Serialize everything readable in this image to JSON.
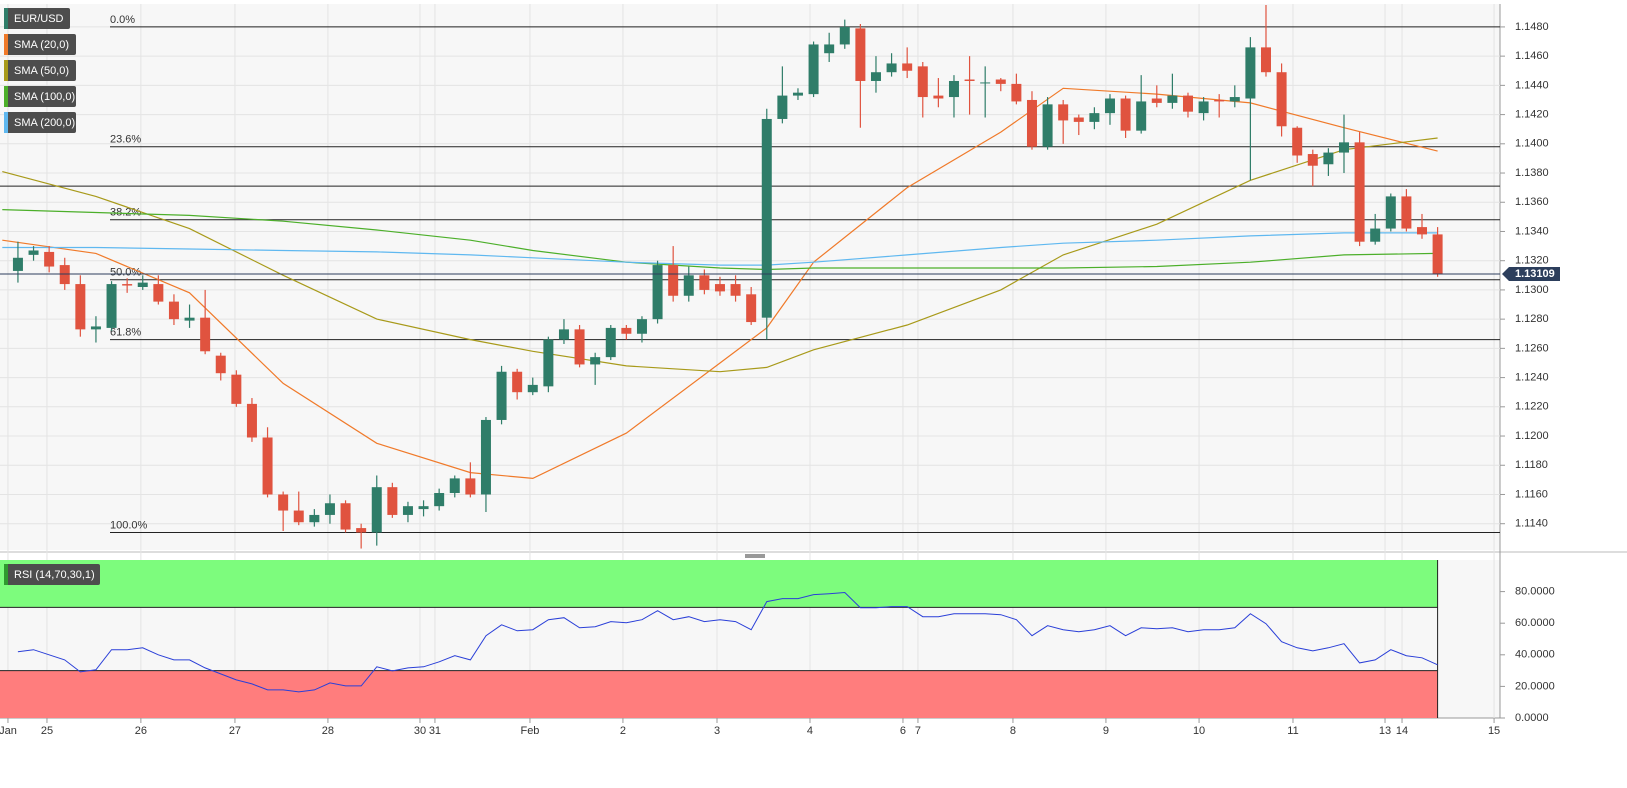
{
  "chart_data": [
    {
      "type": "candlestick",
      "title": "EUR/USD",
      "up_color": "#2f7d69",
      "down_color": "#e0533f",
      "xlim": [
        -1.15,
        95
      ],
      "ylim": [
        1.1122,
        1.1495
      ],
      "xticks": [
        {
          "value": -0.64,
          "label": "Jan"
        },
        {
          "value": 1.86,
          "label": "25"
        },
        {
          "value": 7.88,
          "label": "26"
        },
        {
          "value": 13.91,
          "label": "27"
        },
        {
          "value": 19.87,
          "label": "28"
        },
        {
          "value": 25.77,
          "label": "30"
        },
        {
          "value": 26.73,
          "label": "31"
        },
        {
          "value": 32.82,
          "label": "Feb"
        },
        {
          "value": 38.78,
          "label": "2"
        },
        {
          "value": 44.81,
          "label": "3"
        },
        {
          "value": 50.77,
          "label": "4"
        },
        {
          "value": 56.73,
          "label": "6"
        },
        {
          "value": 57.69,
          "label": "7"
        },
        {
          "value": 63.78,
          "label": "8"
        },
        {
          "value": 69.74,
          "label": "9"
        },
        {
          "value": 75.71,
          "label": "10"
        },
        {
          "value": 81.73,
          "label": "11"
        },
        {
          "value": 87.63,
          "label": "13"
        },
        {
          "value": 88.72,
          "label": "14"
        },
        {
          "value": 94.62,
          "label": "15"
        }
      ],
      "yticks": [
        {
          "value": 1.114,
          "label": "1.1140"
        },
        {
          "value": 1.116,
          "label": "1.1160"
        },
        {
          "value": 1.118,
          "label": "1.1180"
        },
        {
          "value": 1.12,
          "label": "1.1200"
        },
        {
          "value": 1.122,
          "label": "1.1220"
        },
        {
          "value": 1.124,
          "label": "1.1240"
        },
        {
          "value": 1.126,
          "label": "1.1260"
        },
        {
          "value": 1.128,
          "label": "1.1280"
        },
        {
          "value": 1.13,
          "label": "1.1300"
        },
        {
          "value": 1.132,
          "label": "1.1320"
        },
        {
          "value": 1.134,
          "label": "1.1340"
        },
        {
          "value": 1.136,
          "label": "1.1360"
        },
        {
          "value": 1.138,
          "label": "1.1380"
        },
        {
          "value": 1.14,
          "label": "1.1400"
        },
        {
          "value": 1.142,
          "label": "1.1420"
        },
        {
          "value": 1.144,
          "label": "1.1440"
        },
        {
          "value": 1.146,
          "label": "1.1460"
        },
        {
          "value": 1.148,
          "label": "1.1480"
        }
      ],
      "grid": true,
      "open": [
        1.1313,
        1.1324,
        1.1326,
        1.1317,
        1.1304,
        1.1273,
        1.1274,
        1.1304,
        1.1302,
        1.1304,
        1.1292,
        1.1279,
        1.1281,
        1.1255,
        1.1242,
        1.1222,
        1.1199,
        1.116,
        1.1149,
        1.1141,
        1.1146,
        1.1154,
        1.1137,
        1.1134,
        1.1165,
        1.1146,
        1.115,
        1.1152,
        1.1161,
        1.1171,
        1.116,
        1.1211,
        1.1244,
        1.123,
        1.1234,
        1.1266,
        1.1273,
        1.1249,
        1.1254,
        1.1274,
        1.127,
        1.128,
        1.1317,
        1.1296,
        1.131,
        1.1304,
        1.1304,
        1.1297,
        1.1281,
        1.1417,
        1.1433,
        1.1434,
        1.1462,
        1.1468,
        1.1479,
        1.1443,
        1.1449,
        1.1455,
        1.1453,
        1.1433,
        1.1432,
        1.1444,
        1.1442,
        1.1444,
        1.1441,
        1.143,
        1.1398,
        1.1427,
        1.1418,
        1.1415,
        1.1421,
        1.1431,
        1.1409,
        1.1431,
        1.1428,
        1.1433,
        1.1421,
        1.143,
        1.1429,
        1.1431,
        1.1466,
        1.1449,
        1.1411,
        1.1393,
        1.1386,
        1.1394,
        1.1401,
        1.1333,
        1.1342,
        1.1364,
        1.1343,
        1.1338
      ],
      "high": [
        1.1333,
        1.133,
        1.133,
        1.1322,
        1.131,
        1.1282,
        1.1306,
        1.1308,
        1.131,
        1.131,
        1.1297,
        1.129,
        1.13,
        1.1257,
        1.1245,
        1.1226,
        1.1206,
        1.1162,
        1.1162,
        1.115,
        1.116,
        1.1156,
        1.114,
        1.1173,
        1.1168,
        1.1155,
        1.1156,
        1.1164,
        1.1173,
        1.1182,
        1.1213,
        1.1248,
        1.1246,
        1.124,
        1.1268,
        1.128,
        1.1276,
        1.1257,
        1.1276,
        1.1276,
        1.1282,
        1.132,
        1.133,
        1.1316,
        1.1314,
        1.1309,
        1.131,
        1.1302,
        1.1424,
        1.1453,
        1.1438,
        1.147,
        1.1476,
        1.1485,
        1.1482,
        1.146,
        1.1462,
        1.1466,
        1.1456,
        1.1445,
        1.1447,
        1.146,
        1.1453,
        1.1445,
        1.1448,
        1.1436,
        1.1432,
        1.143,
        1.142,
        1.1425,
        1.1434,
        1.1433,
        1.1447,
        1.144,
        1.1448,
        1.1435,
        1.1432,
        1.1434,
        1.144,
        1.1473,
        1.1495,
        1.1455,
        1.1412,
        1.1396,
        1.1397,
        1.142,
        1.1408,
        1.1352,
        1.1366,
        1.1369,
        1.1352,
        1.1343
      ],
      "low": [
        1.1305,
        1.132,
        1.1312,
        1.13,
        1.1268,
        1.1264,
        1.1272,
        1.1298,
        1.13,
        1.129,
        1.1276,
        1.1274,
        1.1256,
        1.1238,
        1.122,
        1.1196,
        1.1158,
        1.1135,
        1.1139,
        1.1138,
        1.114,
        1.1134,
        1.1123,
        1.1125,
        1.1144,
        1.1141,
        1.1145,
        1.1149,
        1.1158,
        1.1158,
        1.1148,
        1.1208,
        1.1225,
        1.1228,
        1.123,
        1.1263,
        1.1247,
        1.1235,
        1.1252,
        1.1266,
        1.1264,
        1.1277,
        1.1292,
        1.1292,
        1.1297,
        1.1296,
        1.1292,
        1.1276,
        1.1266,
        1.1414,
        1.143,
        1.1432,
        1.1456,
        1.1465,
        1.1411,
        1.1435,
        1.1446,
        1.1445,
        1.1418,
        1.1425,
        1.1418,
        1.142,
        1.1418,
        1.1436,
        1.1427,
        1.1396,
        1.1396,
        1.14,
        1.1406,
        1.141,
        1.1413,
        1.1404,
        1.1407,
        1.1425,
        1.1424,
        1.1418,
        1.1416,
        1.1418,
        1.1425,
        1.1375,
        1.1446,
        1.1405,
        1.1387,
        1.1371,
        1.1378,
        1.138,
        1.133,
        1.1331,
        1.134,
        1.134,
        1.1335,
        1.1309
      ],
      "close": [
        1.1322,
        1.1327,
        1.1316,
        1.1304,
        1.1273,
        1.1275,
        1.1304,
        1.1303,
        1.1305,
        1.1292,
        1.128,
        1.1281,
        1.1258,
        1.1243,
        1.1222,
        1.1199,
        1.116,
        1.1149,
        1.1141,
        1.1146,
        1.1154,
        1.1136,
        1.1134,
        1.1165,
        1.1146,
        1.1152,
        1.1152,
        1.1161,
        1.1171,
        1.116,
        1.1211,
        1.1244,
        1.123,
        1.1235,
        1.1266,
        1.1273,
        1.1249,
        1.1254,
        1.1274,
        1.127,
        1.128,
        1.1317,
        1.1296,
        1.131,
        1.13,
        1.1299,
        1.1296,
        1.1278,
        1.1417,
        1.1433,
        1.1435,
        1.1468,
        1.1468,
        1.148,
        1.1443,
        1.1449,
        1.1455,
        1.145,
        1.1432,
        1.1431,
        1.1443,
        1.1443,
        1.1442,
        1.1441,
        1.1429,
        1.1398,
        1.1427,
        1.1416,
        1.1415,
        1.1421,
        1.1431,
        1.1409,
        1.1429,
        1.1428,
        1.1433,
        1.1422,
        1.1429,
        1.1429,
        1.1432,
        1.1466,
        1.1449,
        1.1412,
        1.1392,
        1.1385,
        1.1394,
        1.1401,
        1.1333,
        1.1342,
        1.1364,
        1.1342,
        1.1338,
        1.13109
      ],
      "last_price": 1.13109,
      "last_price_label": "1.13109",
      "last_price_color": "#2c3e5c",
      "levels": [
        {
          "value": 1.148,
          "label": "0.0%"
        },
        {
          "value": 1.1398,
          "label": "23.6%"
        },
        {
          "value": 1.1348,
          "label": "38.2%"
        },
        {
          "value": 1.1307,
          "label": "50.0%"
        },
        {
          "value": 1.1266,
          "label": "61.8%"
        },
        {
          "value": 1.1134,
          "label": "100.0%"
        }
      ],
      "hlines": [
        1.1371
      ],
      "sma_x": [
        -1,
        5,
        11,
        17,
        23,
        29,
        33,
        39,
        45,
        48,
        51,
        57,
        63,
        67,
        73,
        79,
        85,
        91
      ],
      "series": [
        {
          "name": "SMA (20,0)",
          "color": "#f07a2a",
          "values": [
            1.1334,
            1.1325,
            1.1298,
            1.1236,
            1.1195,
            1.1175,
            1.1171,
            1.1202,
            1.125,
            1.1274,
            1.1319,
            1.137,
            1.1408,
            1.1438,
            1.1434,
            1.1428,
            1.1411,
            1.1395
          ]
        },
        {
          "name": "SMA (50,0)",
          "color": "#a89a1a",
          "values": [
            1.1381,
            1.1364,
            1.1342,
            1.131,
            1.128,
            1.1266,
            1.1258,
            1.1248,
            1.1244,
            1.1247,
            1.1259,
            1.1276,
            1.13,
            1.1324,
            1.1345,
            1.1375,
            1.1396,
            1.1404
          ]
        },
        {
          "name": "SMA (100,0)",
          "color": "#4caf2a",
          "values": [
            1.1355,
            1.1353,
            1.1351,
            1.1347,
            1.1341,
            1.1334,
            1.1327,
            1.1319,
            1.1315,
            1.1314,
            1.1315,
            1.1315,
            1.1315,
            1.1315,
            1.1316,
            1.1319,
            1.1324,
            1.1325
          ]
        },
        {
          "name": "SMA (200,0)",
          "color": "#5fb8f0",
          "values": [
            1.1329,
            1.1329,
            1.1328,
            1.1327,
            1.1326,
            1.1324,
            1.1322,
            1.1319,
            1.1317,
            1.1317,
            1.1319,
            1.1324,
            1.1329,
            1.1332,
            1.1334,
            1.1337,
            1.1339,
            1.1339
          ]
        }
      ]
    },
    {
      "type": "line",
      "title": "RSI (14,70,30,1)",
      "color": "#2a3fd8",
      "upper": 70,
      "lower": 30,
      "upper_color": "#7dfc7d",
      "lower_color": "#ff7d7d",
      "ylim": [
        0,
        100
      ],
      "yticks": [
        {
          "value": 0,
          "label": "0.0000"
        },
        {
          "value": 20,
          "label": "20.0000"
        },
        {
          "value": 40,
          "label": "40.0000"
        },
        {
          "value": 60,
          "label": "60.0000"
        },
        {
          "value": 80,
          "label": "80.0000"
        }
      ],
      "values": [
        41.9,
        43.2,
        40.0,
        36.8,
        29.2,
        30.5,
        43.2,
        43.2,
        44.4,
        40.0,
        36.8,
        36.8,
        31.7,
        27.9,
        24.1,
        21.6,
        17.8,
        17.8,
        16.5,
        17.8,
        22.2,
        20.3,
        20.3,
        32.4,
        29.8,
        31.7,
        32.4,
        35.6,
        39.4,
        36.8,
        52.1,
        59.0,
        55.2,
        55.9,
        62.2,
        63.5,
        57.1,
        57.8,
        61.0,
        60.3,
        62.2,
        67.9,
        62.2,
        64.1,
        61.0,
        62.2,
        61.0,
        55.9,
        73.7,
        75.6,
        75.6,
        78.1,
        78.7,
        79.4,
        69.8,
        69.8,
        70.5,
        70.5,
        64.1,
        64.1,
        66.0,
        66.0,
        66.0,
        65.4,
        62.2,
        52.1,
        58.4,
        55.9,
        54.6,
        55.9,
        58.4,
        52.1,
        57.1,
        56.5,
        57.1,
        54.6,
        55.9,
        55.9,
        57.1,
        66.0,
        59.7,
        48.3,
        44.4,
        42.5,
        44.4,
        47.0,
        34.9,
        36.8,
        43.2,
        39.4,
        38.1,
        33.7
      ]
    }
  ]
}
